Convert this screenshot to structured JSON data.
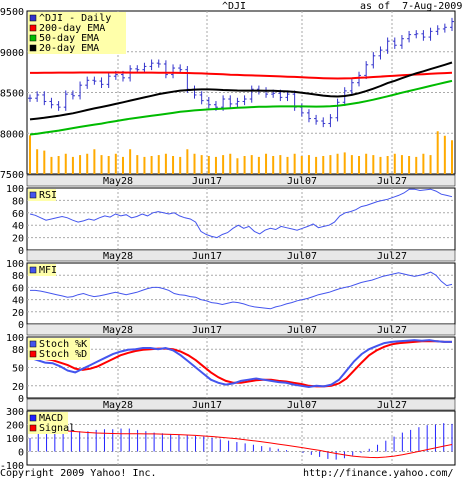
{
  "header": {
    "symbol": "^DJI",
    "asof": "as of  7-Aug-2009"
  },
  "footer": {
    "copyright": "Copyright 2009 Yahoo! Inc.",
    "url": "http://finance.yahoo.com/"
  },
  "date_labels": [
    "May28",
    "Jun17",
    "Jul07",
    "Jul27"
  ],
  "colors": {
    "price": "#3333cc",
    "ema200": "#ff0000",
    "ema50": "#00bb00",
    "ema20": "#000000",
    "volume": "#ffaa00",
    "indicator": "#4455ee",
    "grid": "#aaaaaa",
    "legend_box": "#ffffaa",
    "bg": "#ffffff",
    "macd_bar": "#2222ff",
    "signal": "#ff0000"
  },
  "chart_data": [
    {
      "type": "candlestick",
      "legend": [
        "^DJI - Daily",
        "200-day EMA",
        "50-day EMA",
        "20-day EMA"
      ],
      "ylim": [
        7500,
        9500
      ],
      "yticks": [
        "9500",
        "9000",
        "8500",
        "8000",
        "7500"
      ],
      "close": [
        8430,
        8470,
        8390,
        8350,
        8320,
        8480,
        8460,
        8590,
        8650,
        8640,
        8600,
        8700,
        8720,
        8680,
        8790,
        8780,
        8820,
        8860,
        8850,
        8720,
        8800,
        8780,
        8540,
        8470,
        8400,
        8350,
        8320,
        8420,
        8360,
        8390,
        8420,
        8540,
        8520,
        8480,
        8490,
        8440,
        8480,
        8320,
        8250,
        8180,
        8150,
        8120,
        8190,
        8380,
        8520,
        8620,
        8710,
        8840,
        8950,
        9020,
        9130,
        9080,
        9160,
        9210,
        9220,
        9180,
        9250,
        9280,
        9300,
        9370
      ],
      "ema200": [
        8740,
        8741,
        8742,
        8743,
        8744,
        8744,
        8744,
        8745,
        8745,
        8745,
        8745,
        8745,
        8745,
        8745,
        8744,
        8744,
        8744,
        8744,
        8743,
        8743,
        8742,
        8741,
        8739,
        8737,
        8734,
        8731,
        8727,
        8723,
        8719,
        8716,
        8712,
        8710,
        8707,
        8704,
        8701,
        8697,
        8694,
        8691,
        8687,
        8683,
        8679,
        8676,
        8673,
        8672,
        8673,
        8676,
        8680,
        8684,
        8690,
        8695,
        8701,
        8706,
        8711,
        8716,
        8721,
        8725,
        8729,
        8734,
        8738,
        8742
      ],
      "ema50": [
        7985,
        7995,
        8008,
        8020,
        8032,
        8047,
        8063,
        8078,
        8092,
        8106,
        8119,
        8135,
        8149,
        8164,
        8178,
        8191,
        8203,
        8214,
        8225,
        8238,
        8250,
        8263,
        8272,
        8280,
        8287,
        8293,
        8298,
        8303,
        8307,
        8312,
        8316,
        8321,
        8324,
        8326,
        8328,
        8329,
        8330,
        8330,
        8329,
        8328,
        8327,
        8328,
        8331,
        8338,
        8348,
        8361,
        8376,
        8393,
        8412,
        8432,
        8453,
        8475,
        8497,
        8518,
        8539,
        8560,
        8581,
        8602,
        8623,
        8642
      ],
      "ema20": [
        8170,
        8180,
        8190,
        8202,
        8214,
        8230,
        8245,
        8265,
        8285,
        8305,
        8322,
        8340,
        8360,
        8380,
        8400,
        8420,
        8440,
        8460,
        8480,
        8495,
        8510,
        8523,
        8530,
        8535,
        8538,
        8538,
        8535,
        8531,
        8528,
        8525,
        8523,
        8523,
        8523,
        8522,
        8521,
        8517,
        8514,
        8507,
        8497,
        8486,
        8474,
        8462,
        8453,
        8451,
        8457,
        8471,
        8491,
        8517,
        8547,
        8580,
        8615,
        8643,
        8675,
        8706,
        8735,
        8760,
        8787,
        8814,
        8840,
        8868
      ],
      "volume": [
        0.86,
        0.55,
        0.52,
        0.38,
        0.4,
        0.45,
        0.38,
        0.42,
        0.45,
        0.55,
        0.42,
        0.4,
        0.45,
        0.38,
        0.55,
        0.42,
        0.38,
        0.4,
        0.42,
        0.45,
        0.4,
        0.38,
        0.55,
        0.45,
        0.42,
        0.4,
        0.38,
        0.42,
        0.45,
        0.35,
        0.4,
        0.42,
        0.38,
        0.45,
        0.4,
        0.42,
        0.38,
        0.45,
        0.4,
        0.42,
        0.38,
        0.4,
        0.42,
        0.45,
        0.48,
        0.42,
        0.4,
        0.45,
        0.42,
        0.38,
        0.4,
        0.45,
        0.42,
        0.4,
        0.38,
        0.45,
        0.42,
        0.95,
        0.85,
        0.75
      ]
    },
    {
      "type": "line",
      "legend": [
        "RSI"
      ],
      "ylim": [
        0,
        100
      ],
      "yticks": [
        "100",
        "80",
        "60",
        "40",
        "20",
        "0"
      ],
      "values": [
        58,
        56,
        52,
        48,
        50,
        52,
        54,
        52,
        48,
        45,
        47,
        50,
        48,
        52,
        55,
        53,
        58,
        55,
        57,
        52,
        54,
        58,
        55,
        60,
        62,
        60,
        58,
        60,
        55,
        52,
        50,
        45,
        30,
        25,
        22,
        20,
        25,
        28,
        35,
        40,
        35,
        38,
        30,
        26,
        32,
        35,
        33,
        38,
        36,
        34,
        32,
        35,
        38,
        42,
        36,
        38,
        40,
        45,
        55,
        60,
        62,
        65,
        70,
        72,
        75,
        78,
        80,
        82,
        85,
        88,
        92,
        98,
        98,
        96,
        97,
        98,
        95,
        90,
        88,
        86
      ]
    },
    {
      "type": "line",
      "legend": [
        "MFI"
      ],
      "ylim": [
        0,
        100
      ],
      "yticks": [
        "100",
        "80",
        "60",
        "40",
        "20",
        "0"
      ],
      "values": [
        55,
        55,
        54,
        52,
        50,
        48,
        46,
        44,
        45,
        48,
        50,
        47,
        45,
        46,
        48,
        50,
        52,
        50,
        48,
        50,
        52,
        55,
        58,
        60,
        60,
        58,
        55,
        50,
        48,
        47,
        45,
        44,
        40,
        38,
        35,
        34,
        32,
        34,
        36,
        35,
        33,
        30,
        28,
        27,
        26,
        25,
        28,
        30,
        33,
        35,
        38,
        40,
        42,
        45,
        48,
        50,
        52,
        55,
        58,
        60,
        62,
        65,
        68,
        70,
        72,
        75,
        78,
        80,
        82,
        84,
        82,
        80,
        78,
        80,
        82,
        85,
        80,
        70,
        63,
        65
      ]
    },
    {
      "type": "line",
      "legend": [
        "Stoch %K",
        "Stoch %D"
      ],
      "ylim": [
        0,
        100
      ],
      "yticks": [
        "100",
        "80",
        "50",
        "20",
        "0"
      ],
      "series": [
        {
          "name": "Stoch %K",
          "values": [
            66,
            62,
            58,
            57,
            52,
            45,
            42,
            48,
            54,
            60,
            66,
            72,
            76,
            79,
            80,
            82,
            82,
            80,
            82,
            78,
            70,
            60,
            50,
            40,
            30,
            25,
            22,
            24,
            28,
            30,
            32,
            30,
            28,
            26,
            25,
            22,
            20,
            18,
            20,
            19,
            22,
            30,
            45,
            60,
            72,
            80,
            85,
            90,
            92,
            93,
            94,
            95,
            94,
            95,
            93,
            92,
            92
          ]
        },
        {
          "name": "Stoch %D",
          "values": [
            68,
            66,
            64,
            62,
            58,
            54,
            48,
            46,
            48,
            52,
            58,
            64,
            70,
            74,
            77,
            79,
            80,
            81,
            81,
            80,
            76,
            70,
            62,
            52,
            42,
            34,
            28,
            25,
            25,
            27,
            29,
            30,
            30,
            28,
            27,
            25,
            23,
            20,
            19,
            19,
            20,
            24,
            32,
            45,
            58,
            70,
            78,
            84,
            88,
            90,
            91,
            92,
            93,
            93,
            93,
            92,
            92
          ]
        }
      ]
    },
    {
      "type": "bar",
      "legend": [
        "MACD",
        "Signal"
      ],
      "ylim": [
        -100,
        300
      ],
      "yticks": [
        "300",
        "200",
        "100",
        "0",
        "-100"
      ],
      "series": [
        {
          "name": "MACD",
          "values": [
            100,
            130,
            140,
            150,
            150,
            160,
            150,
            150,
            160,
            165,
            165,
            170,
            170,
            160,
            150,
            140,
            135,
            130,
            125,
            120,
            115,
            110,
            100,
            90,
            80,
            70,
            60,
            50,
            40,
            30,
            20,
            10,
            0,
            -10,
            -25,
            -40,
            -55,
            -60,
            -50,
            -30,
            -10,
            20,
            50,
            80,
            110,
            140,
            160,
            180,
            195,
            200,
            210,
            205
          ]
        },
        {
          "name": "Signal",
          "values": [
            170,
            165,
            160,
            157,
            153,
            150,
            145,
            141,
            137,
            135,
            133,
            132,
            131,
            131,
            130,
            130,
            129,
            127,
            125,
            122,
            119,
            115,
            111,
            106,
            100,
            94,
            87,
            80,
            72,
            64,
            55,
            46,
            37,
            28,
            18,
            8,
            -4,
            -15,
            -25,
            -34,
            -40,
            -44,
            -45,
            -41,
            -34,
            -24,
            -12,
            1,
            14,
            27,
            40,
            52
          ]
        }
      ]
    }
  ]
}
